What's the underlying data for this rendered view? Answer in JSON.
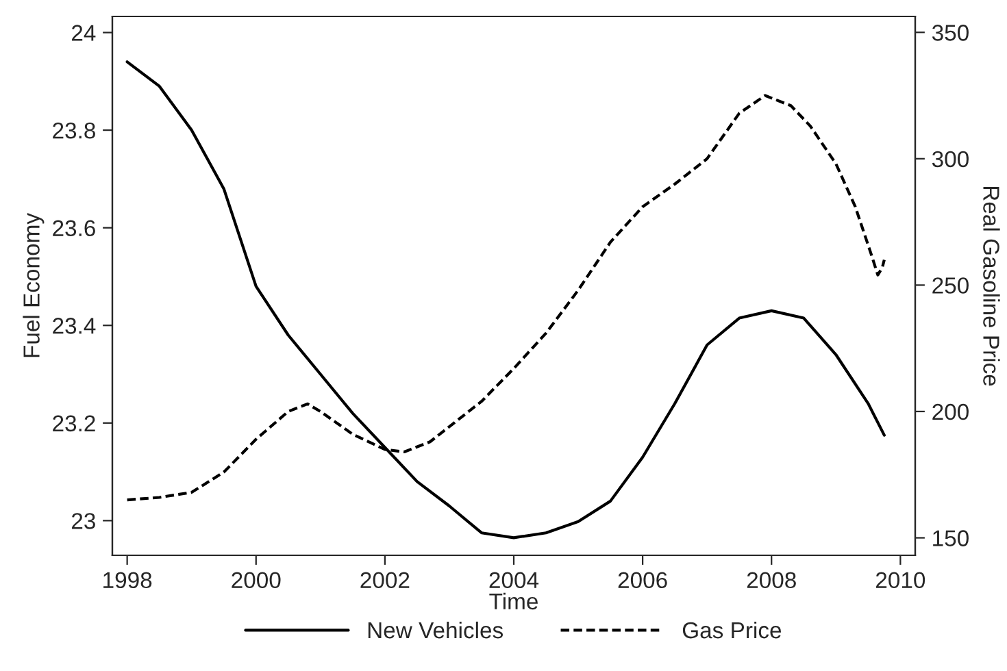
{
  "chart_data": {
    "type": "line",
    "xlabel": "Time",
    "ylabel": "Fuel Economy",
    "y2label": "Real Gasoline Price",
    "xlim": [
      1997.77,
      2010.23
    ],
    "xticks": [
      1998,
      2000,
      2002,
      2004,
      2006,
      2008,
      2010
    ],
    "ylim": [
      22.929,
      24.033
    ],
    "yticks": [
      {
        "value": 23,
        "label": "23"
      },
      23.2,
      23.4,
      23.6,
      23.8,
      24
    ],
    "y2lim": [
      143.1,
      356.3
    ],
    "y2ticks": [
      150,
      200,
      250,
      300,
      350
    ],
    "legend": "bottom",
    "grid": false,
    "series": [
      {
        "name": "New Vehicles",
        "color": "#000000",
        "line_style": "solid",
        "x": [
          1998,
          1998.5,
          1999,
          1999.5,
          2000,
          2000.5,
          2001,
          2001.5,
          2002,
          2002.5,
          2003,
          2003.5,
          2004,
          2004.5,
          2005,
          2005.5,
          2006,
          2006.5,
          2007,
          2007.5,
          2008,
          2008.5,
          2009,
          2009.5,
          2009.75
        ],
        "values": [
          23.94,
          23.89,
          23.8,
          23.68,
          23.48,
          23.38,
          23.3,
          23.22,
          23.15,
          23.08,
          23.03,
          22.975,
          22.965,
          22.975,
          22.998,
          23.04,
          23.13,
          23.24,
          23.36,
          23.415,
          23.43,
          23.415,
          23.34,
          23.24,
          23.175
        ]
      },
      {
        "name": "Gas Price",
        "color": "#000000",
        "line_style": "dashed",
        "axis": "y2",
        "x": [
          1998,
          1998.5,
          1999,
          1999.5,
          2000,
          2000.5,
          2000.8,
          2001,
          2001.5,
          2002,
          2002.3,
          2002.7,
          2003,
          2003.5,
          2004,
          2004.5,
          2005,
          2005.5,
          2006,
          2006.5,
          2007,
          2007.5,
          2007.9,
          2008.3,
          2008.6,
          2009,
          2009.3,
          2009.55,
          2009.65,
          2009.72,
          2009.75
        ],
        "values": [
          165,
          166,
          168,
          176,
          189,
          200,
          203,
          200,
          191,
          185,
          184,
          188,
          194,
          204,
          217,
          231,
          248,
          267,
          281,
          290,
          300,
          318,
          325,
          321,
          313,
          298,
          281,
          262,
          254,
          257,
          260
        ]
      }
    ]
  }
}
